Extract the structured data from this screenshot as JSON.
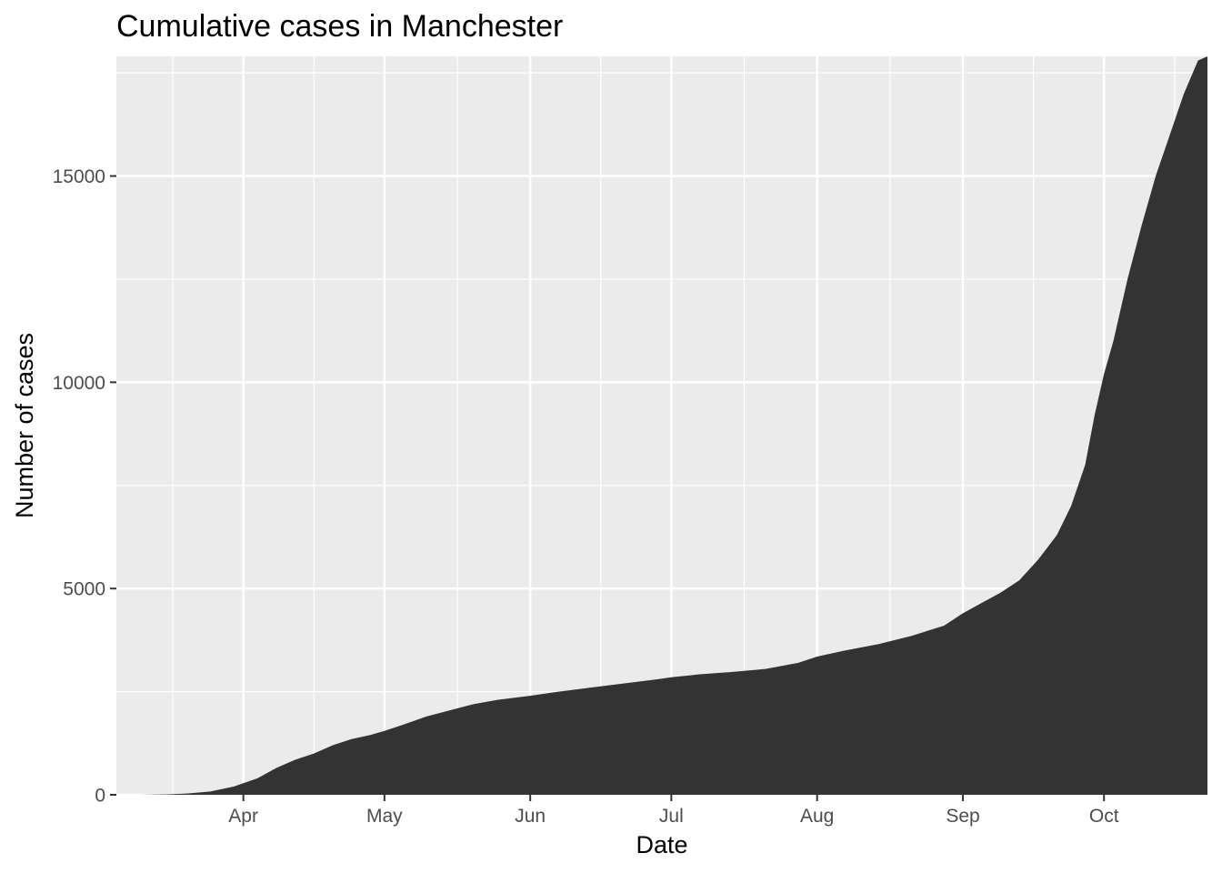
{
  "chart_data": {
    "type": "area",
    "title": "Cumulative cases in Manchester",
    "xlabel": "Date",
    "ylabel": "Number of cases",
    "xlim": [
      "2020-03-05",
      "2020-10-23"
    ],
    "ylim": [
      0,
      17900
    ],
    "x_ticks": [
      {
        "date": "2020-04-01",
        "label": "Apr"
      },
      {
        "date": "2020-05-01",
        "label": "May"
      },
      {
        "date": "2020-06-01",
        "label": "Jun"
      },
      {
        "date": "2020-07-01",
        "label": "Jul"
      },
      {
        "date": "2020-08-01",
        "label": "Aug"
      },
      {
        "date": "2020-09-01",
        "label": "Sep"
      },
      {
        "date": "2020-10-01",
        "label": "Oct"
      }
    ],
    "y_ticks": [
      {
        "value": 0,
        "label": "0"
      },
      {
        "value": 5000,
        "label": "5000"
      },
      {
        "value": 10000,
        "label": "10000"
      },
      {
        "value": 15000,
        "label": "15000"
      }
    ],
    "grid": true,
    "legend": "none",
    "fill_color": "#333333",
    "panel_color": "#ebebeb",
    "series": [
      {
        "x": [
          "2020-03-10",
          "2020-03-16",
          "2020-03-20",
          "2020-03-25",
          "2020-03-30",
          "2020-04-04",
          "2020-04-08",
          "2020-04-12",
          "2020-04-16",
          "2020-04-20",
          "2020-04-24",
          "2020-04-28",
          "2020-05-01",
          "2020-05-05",
          "2020-05-10",
          "2020-05-15",
          "2020-05-20",
          "2020-05-25",
          "2020-06-01",
          "2020-06-07",
          "2020-06-14",
          "2020-06-21",
          "2020-06-28",
          "2020-07-01",
          "2020-07-07",
          "2020-07-14",
          "2020-07-21",
          "2020-07-28",
          "2020-08-01",
          "2020-08-07",
          "2020-08-14",
          "2020-08-21",
          "2020-08-28",
          "2020-09-01",
          "2020-09-05",
          "2020-09-09",
          "2020-09-13",
          "2020-09-17",
          "2020-09-21",
          "2020-09-24",
          "2020-09-27",
          "2020-09-29",
          "2020-10-01",
          "2020-10-03",
          "2020-10-06",
          "2020-10-09",
          "2020-10-12",
          "2020-10-15",
          "2020-10-18",
          "2020-10-21",
          "2020-10-23"
        ],
        "y": [
          0,
          10,
          30,
          80,
          200,
          400,
          650,
          850,
          1000,
          1200,
          1350,
          1450,
          1550,
          1700,
          1900,
          2050,
          2200,
          2300,
          2400,
          2500,
          2600,
          2700,
          2800,
          2850,
          2920,
          2980,
          3050,
          3200,
          3350,
          3500,
          3650,
          3850,
          4100,
          4400,
          4650,
          4900,
          5200,
          5700,
          6300,
          7000,
          8000,
          9200,
          10200,
          11000,
          12500,
          13800,
          15000,
          16000,
          17000,
          17800,
          17900
        ]
      }
    ]
  }
}
